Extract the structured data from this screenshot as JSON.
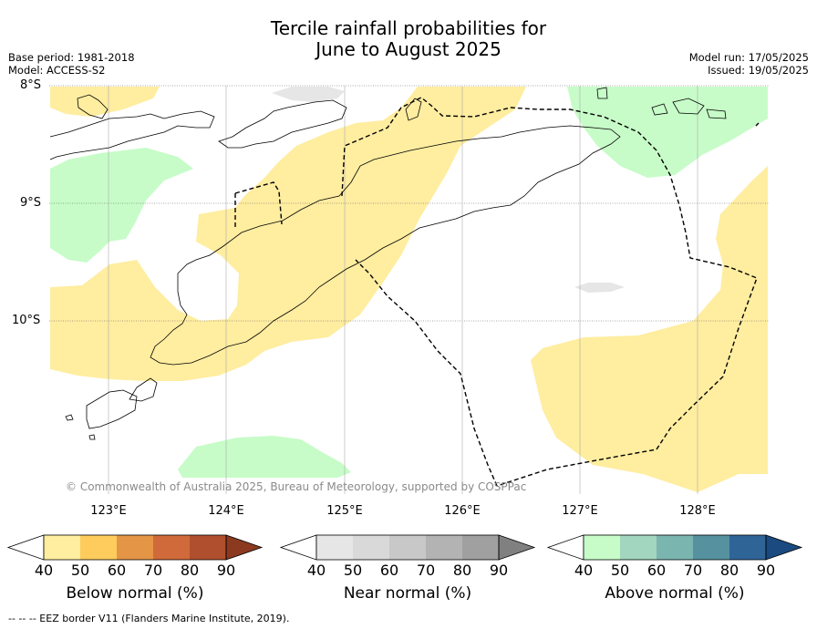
{
  "title_line1": "Tercile rainfall probabilities for",
  "title_line2": "June to August 2025",
  "meta_left": {
    "base_period": "Base period: 1981-2018",
    "model": "Model: ACCESS-S2"
  },
  "meta_right": {
    "model_run": "Model run: 17/05/2025",
    "issued": "Issued: 19/05/2025"
  },
  "lat_labels": [
    "8°S",
    "9°S",
    "10°S"
  ],
  "lon_labels": [
    "123°E",
    "124°E",
    "125°E",
    "126°E",
    "127°E",
    "128°E"
  ],
  "copyright": "© Commonwealth of Australia 2025, Bureau of Meteorology, supported by COSPPac",
  "colorbars": [
    {
      "label": "Below normal (%)",
      "ticks": [
        "40",
        "50",
        "60",
        "70",
        "80",
        "90"
      ],
      "colors": [
        "#ffffff",
        "#ffeda0",
        "#fecc5c",
        "#e49546",
        "#d06a3a",
        "#b04f2e",
        "#8c3a1f"
      ]
    },
    {
      "label": "Near normal (%)",
      "ticks": [
        "40",
        "50",
        "60",
        "70",
        "80",
        "90"
      ],
      "colors": [
        "#ffffff",
        "#e6e6e6",
        "#d9d9d9",
        "#c8c8c8",
        "#b3b3b3",
        "#a0a0a0",
        "#808080"
      ]
    },
    {
      "label": "Above normal (%)",
      "ticks": [
        "40",
        "50",
        "60",
        "70",
        "80",
        "90"
      ],
      "colors": [
        "#ffffff",
        "#c7fcc8",
        "#a2d6be",
        "#7bb5b0",
        "#55919f",
        "#2f6497",
        "#1a4a80"
      ]
    }
  ],
  "footnote": "--  --  -- EEZ border V11 (Flanders Marine Institute, 2019).",
  "map_colors": {
    "below": "#ffeda0",
    "above": "#c7fcc8",
    "near": "#e6e6e6",
    "eez": "#000000"
  }
}
